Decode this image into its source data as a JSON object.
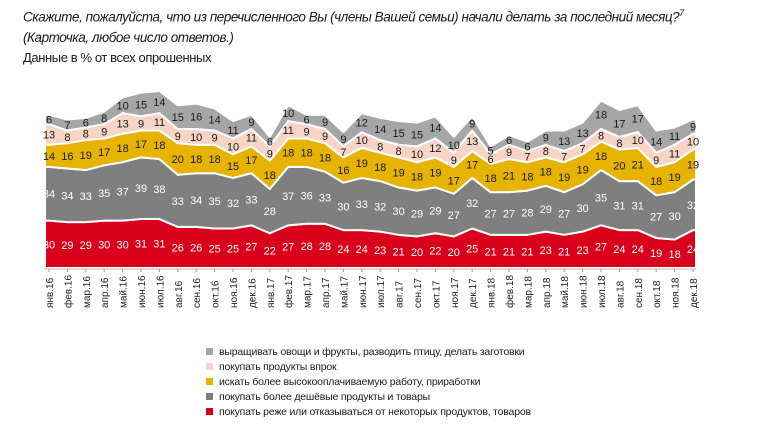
{
  "chart_data": {
    "type": "area",
    "stacked": true,
    "title": "Скажите, пожалуйста, что из перечисленного Вы (члены Вашей семьи) начали делать за последний месяц?",
    "title_footnote": "7",
    "title_line2": "(Карточка, любое число ответов.)",
    "subtitle": "Данные в % от всех опрошенных",
    "legend_position": "bottom",
    "grid": false,
    "categories": [
      "янв.16",
      "фев.16",
      "мар.16",
      "апр.16",
      "май.16",
      "июн.16",
      "июл.16",
      "авг.16",
      "сен.16",
      "окт.16",
      "ноя.16",
      "дек.16",
      "янв.17",
      "фев.17",
      "мар.17",
      "апр.17",
      "май.17",
      "июн.17",
      "июл.17",
      "авг.17",
      "сен.17",
      "окт.17",
      "ноя.17",
      "дек.17",
      "янв.18",
      "фев.18",
      "мар.18",
      "апр.18",
      "май.18",
      "июн.18",
      "июл.18",
      "авг.18",
      "сен.18",
      "окт.18",
      "ноя.18",
      "дек.18"
    ],
    "series": [
      {
        "name": "покупать реже или отказываться  от некоторых продуктов,  товаров",
        "color": "#d9001b",
        "label_color": "#ffffff",
        "values": [
          30,
          29,
          29,
          30,
          30,
          31,
          31,
          26,
          26,
          25,
          25,
          27,
          22,
          27,
          28,
          28,
          24,
          24,
          23,
          21,
          20,
          22,
          20,
          25,
          21,
          21,
          21,
          23,
          21,
          23,
          27,
          24,
          24,
          19,
          18,
          24
        ]
      },
      {
        "name": "покупать более дешёвые продукты и товары",
        "color": "#7f7f7f",
        "label_color": "#ffffff",
        "values": [
          34,
          34,
          33,
          35,
          37,
          39,
          38,
          33,
          34,
          35,
          32,
          33,
          28,
          37,
          36,
          33,
          30,
          33,
          32,
          30,
          29,
          29,
          27,
          32,
          27,
          27,
          28,
          29,
          27,
          30,
          35,
          31,
          31,
          27,
          30,
          32
        ]
      },
      {
        "name": "искать более высокооплачиваемую  работу, приработки",
        "color": "#e6b400",
        "label_color": "#1a1a1a",
        "values": [
          14,
          16,
          19,
          17,
          18,
          17,
          18,
          20,
          18,
          18,
          15,
          17,
          18,
          18,
          18,
          18,
          16,
          19,
          18,
          19,
          18,
          19,
          17,
          17,
          18,
          21,
          18,
          18,
          19,
          19,
          18,
          20,
          21,
          18,
          19,
          19
        ]
      },
      {
        "name": "покупать продукты  впрок",
        "color": "#f6d5c6",
        "label_color": "#1a1a1a",
        "values": [
          13,
          8,
          8,
          9,
          13,
          9,
          11,
          9,
          10,
          9,
          10,
          11,
          9,
          11,
          9,
          9,
          7,
          10,
          8,
          8,
          10,
          12,
          9,
          13,
          6,
          9,
          7,
          8,
          7,
          7,
          8,
          8,
          10,
          9,
          11,
          10
        ]
      },
      {
        "name": "выращивать овощи и фрукты,  разводить птицу, делать заготовки",
        "color": "#a6a6a6",
        "label_color": "#1a1a1a",
        "values": [
          6,
          7,
          6,
          8,
          10,
          15,
          14,
          15,
          16,
          14,
          11,
          9,
          6,
          10,
          6,
          9,
          9,
          12,
          14,
          15,
          15,
          14,
          10,
          9,
          5,
          6,
          6,
          9,
          13,
          13,
          18,
          17,
          17,
          14,
          11,
          9
        ]
      }
    ]
  }
}
